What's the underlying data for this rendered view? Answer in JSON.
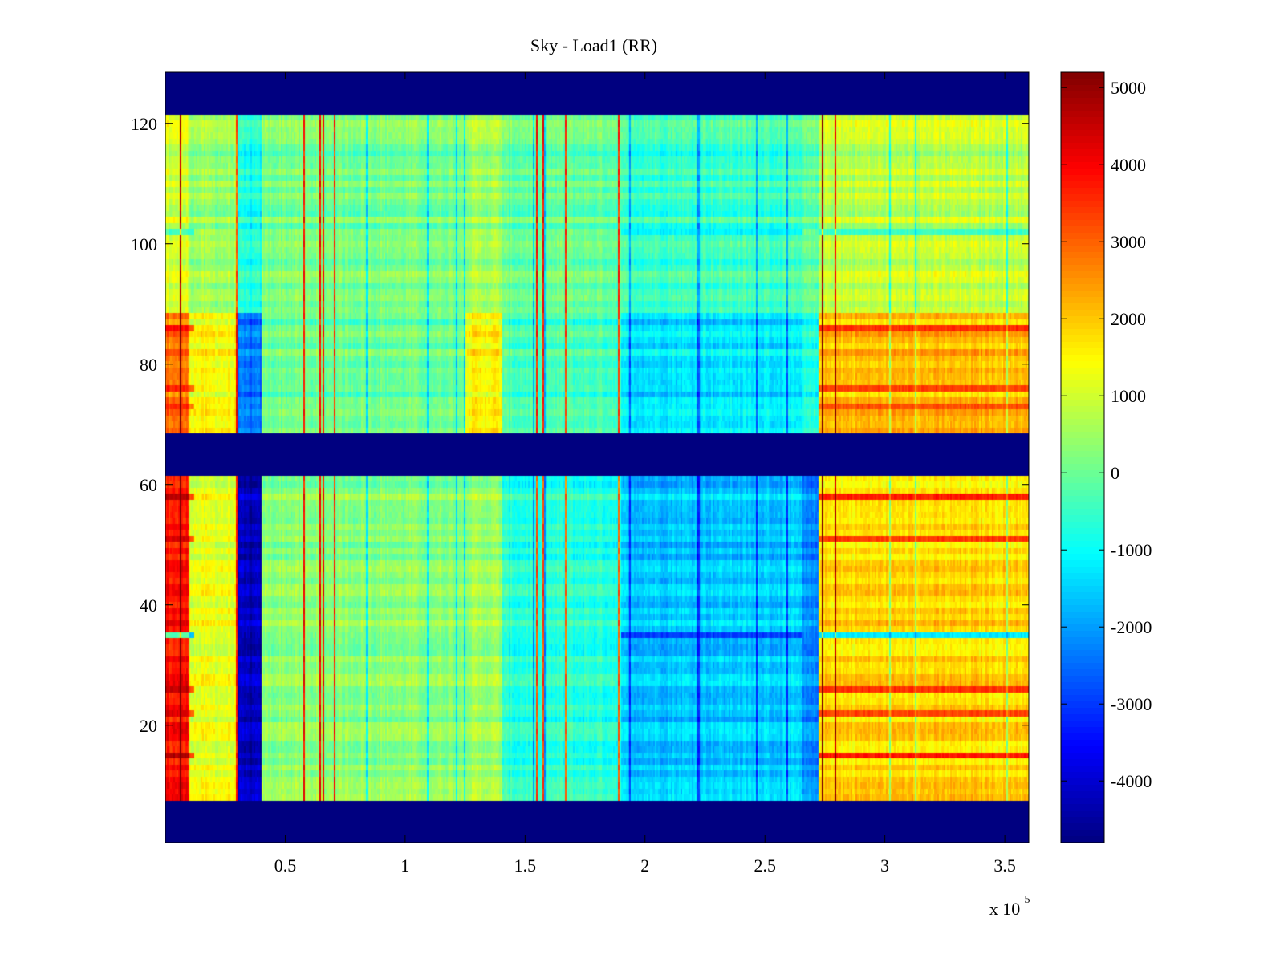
{
  "chart_data": {
    "type": "heatmap",
    "title": "Sky - Load1 (RR)",
    "xlabel": "",
    "ylabel": "",
    "x_exponent_label": "x 10",
    "x_exponent_power": "5",
    "x_scale_factor": 100000,
    "xlim": [
      0,
      360000
    ],
    "ylim": [
      1,
      128
    ],
    "x_ticks": [
      {
        "label": "0.5",
        "value": 50000
      },
      {
        "label": "1",
        "value": 100000
      },
      {
        "label": "1.5",
        "value": 150000
      },
      {
        "label": "2",
        "value": 200000
      },
      {
        "label": "2.5",
        "value": 250000
      },
      {
        "label": "3",
        "value": 300000
      },
      {
        "label": "3.5",
        "value": 350000
      }
    ],
    "y_ticks": [
      {
        "label": "20",
        "value": 20
      },
      {
        "label": "40",
        "value": 40
      },
      {
        "label": "60",
        "value": 60
      },
      {
        "label": "80",
        "value": 80
      },
      {
        "label": "100",
        "value": 100
      },
      {
        "label": "120",
        "value": 120
      }
    ],
    "colormap": "jet",
    "clim": [
      -4800,
      5200
    ],
    "colorbar_ticks": [
      {
        "label": "5000",
        "value": 5000
      },
      {
        "label": "4000",
        "value": 4000
      },
      {
        "label": "3000",
        "value": 3000
      },
      {
        "label": "2000",
        "value": 2000
      },
      {
        "label": "1000",
        "value": 1000
      },
      {
        "label": "0",
        "value": 0
      },
      {
        "label": "-1000",
        "value": -1000
      },
      {
        "label": "-2000",
        "value": -2000
      },
      {
        "label": "-3000",
        "value": -3000
      },
      {
        "label": "-4000",
        "value": -4000
      }
    ],
    "masked_value": -4800,
    "masked_channel_ranges": [
      [
        1,
        7
      ],
      [
        62,
        68
      ],
      [
        122,
        128
      ]
    ],
    "column_segments": [
      {
        "x_start": 0,
        "x_end": 10000,
        "value_ch8_61": 3800,
        "value_ch69_88": 2800,
        "value_ch89_121": 1000
      },
      {
        "x_start": 10000,
        "x_end": 30000,
        "value_ch8_61": 1200,
        "value_ch69_88": 1400,
        "value_ch89_121": 400
      },
      {
        "x_start": 30000,
        "x_end": 40000,
        "value_ch8_61": -4300,
        "value_ch69_88": -2500,
        "value_ch89_121": -900
      },
      {
        "x_start": 40000,
        "x_end": 125000,
        "value_ch8_61": 300,
        "value_ch69_88": 0,
        "value_ch89_121": 100
      },
      {
        "x_start": 125000,
        "x_end": 140000,
        "value_ch8_61": 500,
        "value_ch69_88": 1500,
        "value_ch89_121": 500
      },
      {
        "x_start": 140000,
        "x_end": 190000,
        "value_ch8_61": -700,
        "value_ch69_88": -400,
        "value_ch89_121": -100
      },
      {
        "x_start": 190000,
        "x_end": 265000,
        "value_ch8_61": -1600,
        "value_ch69_88": -1300,
        "value_ch89_121": -500
      },
      {
        "x_start": 265000,
        "x_end": 272000,
        "value_ch8_61": -2300,
        "value_ch69_88": -900,
        "value_ch89_121": -200
      },
      {
        "x_start": 272000,
        "x_end": 360000,
        "value_ch8_61": 1800,
        "value_ch69_88": 2100,
        "value_ch89_121": 800
      }
    ],
    "strong_channels": [
      {
        "channel": 15,
        "value": 3500
      },
      {
        "channel": 22,
        "value": 3000
      },
      {
        "channel": 26,
        "value": 3300
      },
      {
        "channel": 35,
        "value": -2600
      },
      {
        "channel": 51,
        "value": 3000
      },
      {
        "channel": 58,
        "value": 3200
      },
      {
        "channel": 73,
        "value": 2600
      },
      {
        "channel": 76,
        "value": 2800
      },
      {
        "channel": 86,
        "value": 3000
      },
      {
        "channel": 102,
        "value": -1200
      }
    ]
  }
}
